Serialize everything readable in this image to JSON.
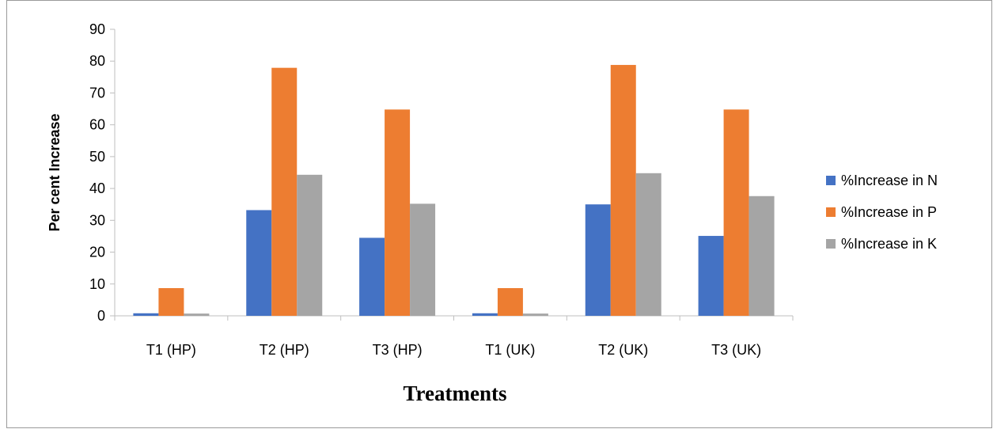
{
  "chart_data": {
    "type": "bar",
    "title": "",
    "xlabel": "Treatments",
    "ylabel": "Per cent Increase",
    "ylim": [
      0,
      90
    ],
    "yticks": [
      0,
      10,
      20,
      30,
      40,
      50,
      60,
      70,
      80,
      90
    ],
    "categories": [
      "T1 (HP)",
      "T2 (HP)",
      "T3 (HP)",
      "T1 (UK)",
      "T2 (UK)",
      "T3 (UK)"
    ],
    "series": [
      {
        "name": "%Increase in N",
        "color": "#4472c4",
        "values": [
          0.8,
          33.2,
          24.5,
          0.8,
          35.0,
          25.1
        ]
      },
      {
        "name": "%Increase in P",
        "color": "#ed7d31",
        "values": [
          8.7,
          77.9,
          64.8,
          8.7,
          78.8,
          64.8
        ]
      },
      {
        "name": "%Increase in K",
        "color": "#a5a5a5",
        "values": [
          0.7,
          44.3,
          35.2,
          0.7,
          44.8,
          37.6
        ]
      }
    ],
    "grid": false,
    "legend_position": "right"
  }
}
